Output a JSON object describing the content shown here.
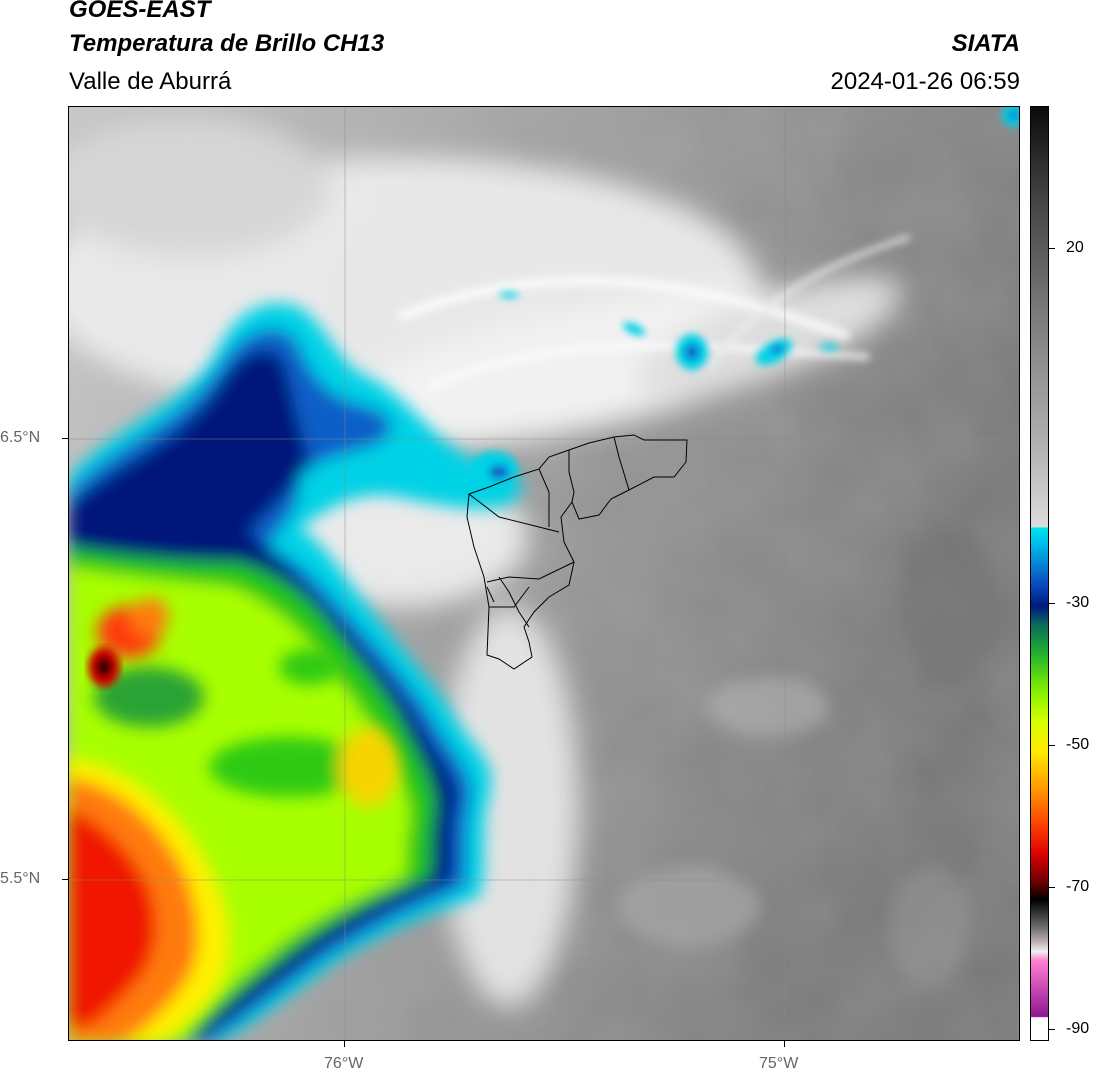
{
  "header": {
    "satellite": "GOES-EAST",
    "product": "Temperatura de Brillo CH13",
    "region": "Valle de Aburrá",
    "organization": "SIATA",
    "datetime": "2024-01-26 06:59"
  },
  "axes": {
    "lat_labels": [
      "6.5°N",
      "5.5°N"
    ],
    "lon_labels": [
      "76°W",
      "75°W"
    ]
  },
  "colorbar": {
    "tick_labels": [
      "20",
      "-30",
      "-50",
      "-70",
      "-90"
    ]
  },
  "colors": {
    "warm_gray": "#8c8c8c",
    "cloud_white": "#f2f2f2",
    "cyan": "#00d2e6",
    "navy": "#00157a",
    "green": "#22c418",
    "lime": "#a8ff00",
    "yellow": "#fff000",
    "orange": "#ff7a10",
    "red": "#f01800"
  }
}
